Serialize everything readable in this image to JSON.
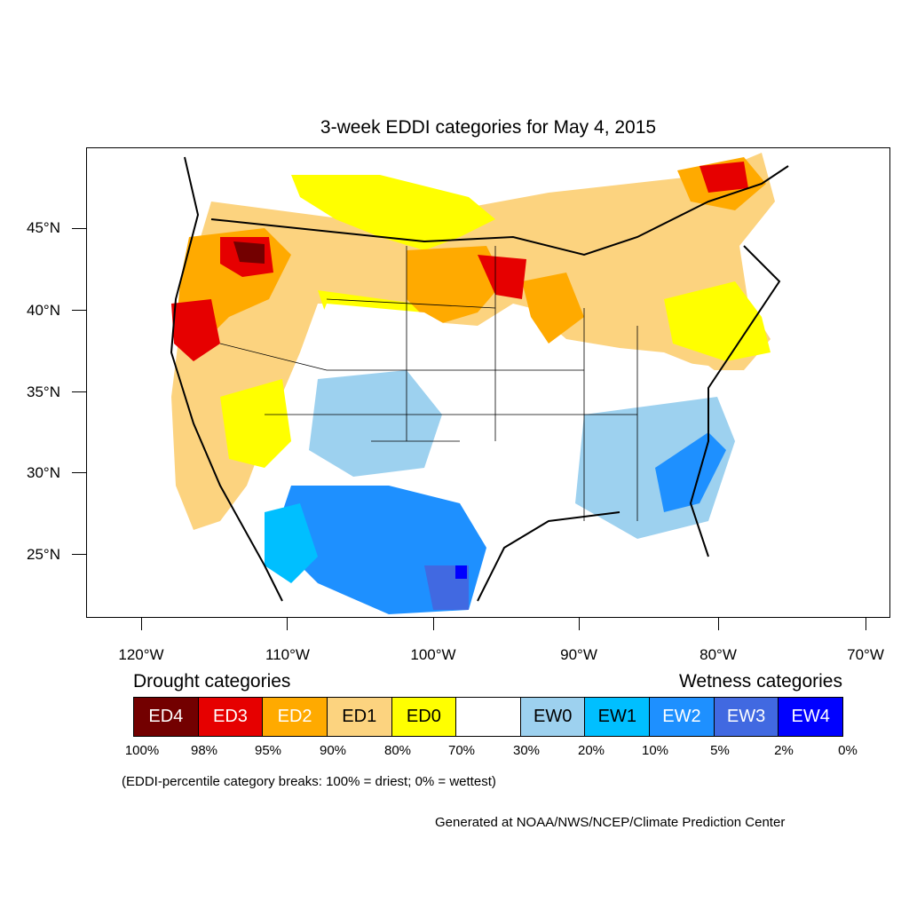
{
  "title": "3-week EDDI categories for May 4, 2015",
  "lat_labels": [
    "45°N",
    "40°N",
    "35°N",
    "30°N",
    "25°N"
  ],
  "lon_labels": [
    "120°W",
    "110°W",
    "100°W",
    "90°W",
    "80°W",
    "70°W"
  ],
  "legend": {
    "drought_heading": "Drought categories",
    "wetness_heading": "Wetness categories",
    "categories": [
      {
        "label": "ED4",
        "color": "#730000",
        "text_color": "#ffffff"
      },
      {
        "label": "ED3",
        "color": "#e60000",
        "text_color": "#ffffff"
      },
      {
        "label": "ED2",
        "color": "#ffaa00",
        "text_color": "#ffffff"
      },
      {
        "label": "ED1",
        "color": "#fcd37f",
        "text_color": "#000000"
      },
      {
        "label": "ED0",
        "color": "#ffff00",
        "text_color": "#000000"
      },
      {
        "label": "",
        "color": "#ffffff",
        "text_color": "#000000"
      },
      {
        "label": "EW0",
        "color": "#9dd1ef",
        "text_color": "#000000"
      },
      {
        "label": "EW1",
        "color": "#00bfff",
        "text_color": "#000000"
      },
      {
        "label": "EW2",
        "color": "#1e90ff",
        "text_color": "#ffffff"
      },
      {
        "label": "EW3",
        "color": "#4169e1",
        "text_color": "#ffffff"
      },
      {
        "label": "EW4",
        "color": "#0000ff",
        "text_color": "#ffffff"
      }
    ],
    "percentiles": [
      "100%",
      "98%",
      "95%",
      "90%",
      "80%",
      "70%",
      "30%",
      "20%",
      "10%",
      "5%",
      "2%",
      "0%"
    ]
  },
  "note": "(EDDI-percentile category breaks: 100% = driest; 0% = wettest)",
  "credit": "Generated at NOAA/NWS/NCEP/Climate Prediction Center"
}
